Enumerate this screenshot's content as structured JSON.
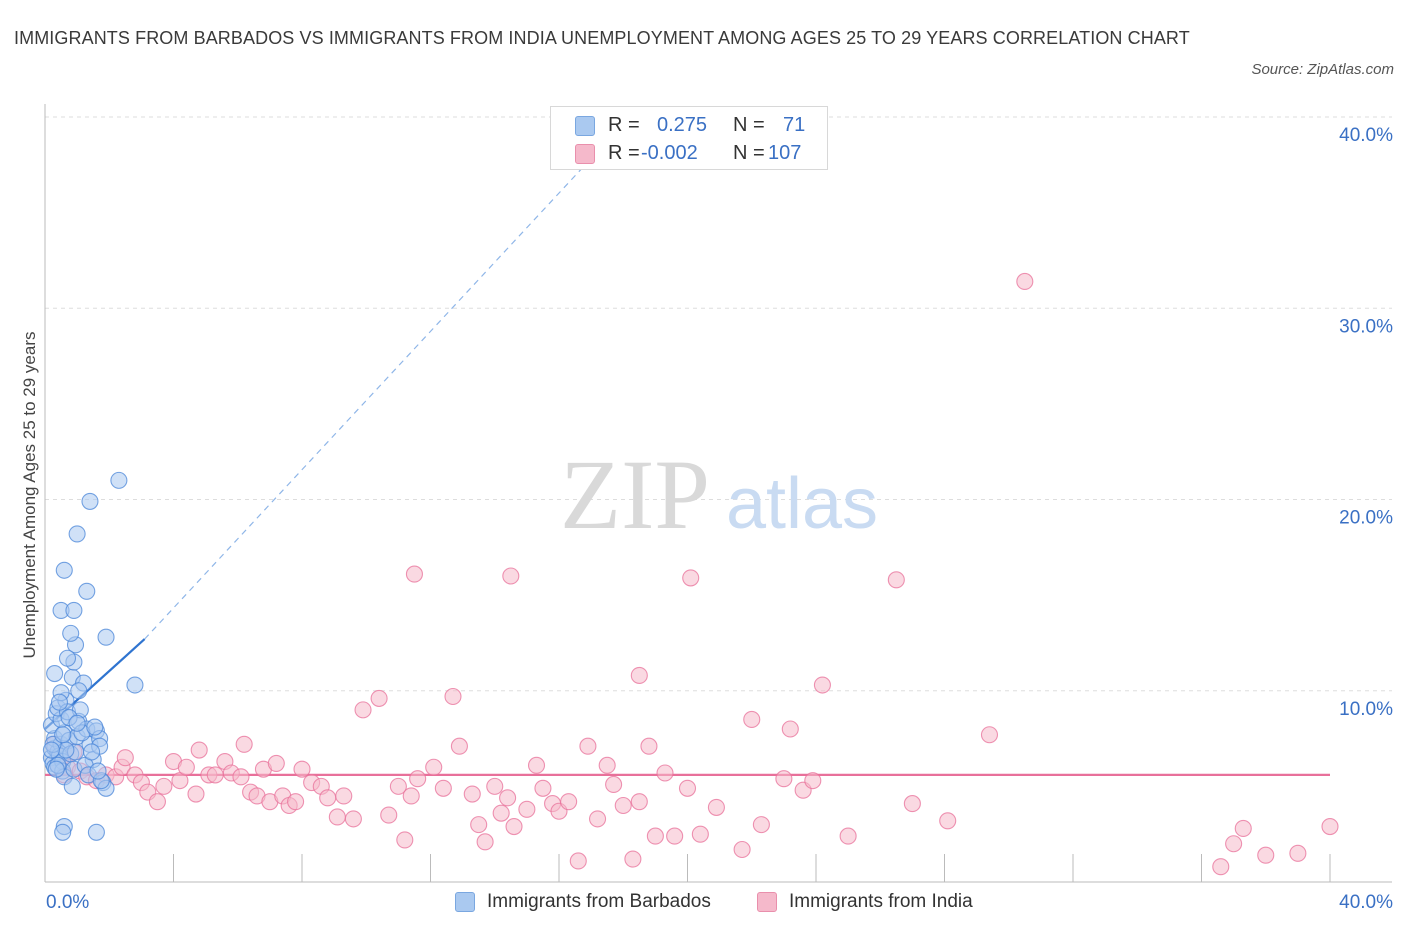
{
  "title": "IMMIGRANTS FROM BARBADOS VS IMMIGRANTS FROM INDIA UNEMPLOYMENT AMONG AGES 25 TO 29 YEARS CORRELATION CHART",
  "source": "Source: ZipAtlas.com",
  "watermark": {
    "zip": "ZIP",
    "atlas": "atlas"
  },
  "legend": {
    "rows": [
      {
        "r_label": "R =",
        "r_value": "0.275",
        "n_label": "N =",
        "n_value": "71",
        "color": "#aac9f0"
      },
      {
        "r_label": "R =",
        "r_value": "-0.002",
        "n_label": "N =",
        "n_value": "107",
        "color": "#f5b9cb"
      }
    ]
  },
  "bottom_legend": [
    {
      "label": "Immigrants from Barbados",
      "color": "#aac9f0"
    },
    {
      "label": "Immigrants from India",
      "color": "#f5b9cb"
    }
  ],
  "chart_data": {
    "type": "scatter",
    "title": "IMMIGRANTS FROM BARBADOS VS IMMIGRANTS FROM INDIA UNEMPLOYMENT AMONG AGES 25 TO 29 YEARS CORRELATION CHART",
    "xlabel": "",
    "ylabel": "Unemployment Among Ages 25 to 29 years",
    "xlim": [
      0,
      40
    ],
    "ylim": [
      0,
      40
    ],
    "x_tick_labels": [
      "0.0%",
      "40.0%"
    ],
    "y_ticks": [
      10,
      20,
      30,
      40
    ],
    "y_tick_labels": [
      "10.0%",
      "20.0%",
      "30.0%",
      "40.0%"
    ],
    "grid": true,
    "series": [
      {
        "name": "Immigrants from Barbados",
        "color": "#4a86d8",
        "fill": "#aac9f0",
        "trend": {
          "x": [
            0,
            3.1
          ],
          "y": [
            8.0,
            12.7
          ],
          "extended_x": [
            3.1,
            18.2
          ],
          "extended_y": [
            12.7,
            40.0
          ]
        },
        "points": [
          [
            0.2,
            6.5
          ],
          [
            0.3,
            7.0
          ],
          [
            0.25,
            6.2
          ],
          [
            0.4,
            6.8
          ],
          [
            0.3,
            7.5
          ],
          [
            0.2,
            8.2
          ],
          [
            0.35,
            8.8
          ],
          [
            0.5,
            7.2
          ],
          [
            0.3,
            6.0
          ],
          [
            0.45,
            6.6
          ],
          [
            0.55,
            6.3
          ],
          [
            0.6,
            7.8
          ],
          [
            0.5,
            8.5
          ],
          [
            0.4,
            9.1
          ],
          [
            0.65,
            9.5
          ],
          [
            0.5,
            9.9
          ],
          [
            0.7,
            8.9
          ],
          [
            0.75,
            7.4
          ],
          [
            0.8,
            6.7
          ],
          [
            0.55,
            5.8
          ],
          [
            0.6,
            5.5
          ],
          [
            0.9,
            5.9
          ],
          [
            0.95,
            6.8
          ],
          [
            1.0,
            7.6
          ],
          [
            1.05,
            8.4
          ],
          [
            1.1,
            9.0
          ],
          [
            0.85,
            10.7
          ],
          [
            0.9,
            11.5
          ],
          [
            0.95,
            12.4
          ],
          [
            0.8,
            13.0
          ],
          [
            1.2,
            10.4
          ],
          [
            1.3,
            8.0
          ],
          [
            1.4,
            7.2
          ],
          [
            1.5,
            6.4
          ],
          [
            1.6,
            7.9
          ],
          [
            1.7,
            7.5
          ],
          [
            1.25,
            6.1
          ],
          [
            1.35,
            5.6
          ],
          [
            1.8,
            5.2
          ],
          [
            1.9,
            4.9
          ],
          [
            1.7,
            7.1
          ],
          [
            0.3,
            10.9
          ],
          [
            0.7,
            11.7
          ],
          [
            0.5,
            14.2
          ],
          [
            0.9,
            14.2
          ],
          [
            1.3,
            15.2
          ],
          [
            0.6,
            16.3
          ],
          [
            1.0,
            18.2
          ],
          [
            1.4,
            19.9
          ],
          [
            2.3,
            21.0
          ],
          [
            1.9,
            12.8
          ],
          [
            2.8,
            10.3
          ],
          [
            0.6,
            2.9
          ],
          [
            0.55,
            2.6
          ],
          [
            1.6,
            2.6
          ],
          [
            0.85,
            5.0
          ],
          [
            1.75,
            5.3
          ],
          [
            1.15,
            7.8
          ],
          [
            1.45,
            6.8
          ],
          [
            0.4,
            6.1
          ],
          [
            0.35,
            5.9
          ],
          [
            0.65,
            6.9
          ],
          [
            0.75,
            8.6
          ],
          [
            1.05,
            10.0
          ],
          [
            0.45,
            9.4
          ],
          [
            0.25,
            7.2
          ],
          [
            0.2,
            6.9
          ],
          [
            0.55,
            7.7
          ],
          [
            1.0,
            8.3
          ],
          [
            1.55,
            8.1
          ],
          [
            1.65,
            5.8
          ]
        ]
      },
      {
        "name": "Immigrants from India",
        "color": "#e8709a",
        "fill": "#f5b9cb",
        "trend": {
          "x": [
            0,
            40
          ],
          "y": [
            5.6,
            5.6
          ]
        },
        "points": [
          [
            0.3,
            7.2
          ],
          [
            0.5,
            6.5
          ],
          [
            0.7,
            6.0
          ],
          [
            0.9,
            6.8
          ],
          [
            1.1,
            5.8
          ],
          [
            0.6,
            5.6
          ],
          [
            0.4,
            6.1
          ],
          [
            1.3,
            5.5
          ],
          [
            1.6,
            5.3
          ],
          [
            1.9,
            5.6
          ],
          [
            2.2,
            5.5
          ],
          [
            2.4,
            6.0
          ],
          [
            2.5,
            6.5
          ],
          [
            2.8,
            5.6
          ],
          [
            3.0,
            5.2
          ],
          [
            3.2,
            4.7
          ],
          [
            3.5,
            4.2
          ],
          [
            3.7,
            5.0
          ],
          [
            4.0,
            6.3
          ],
          [
            4.2,
            5.3
          ],
          [
            4.4,
            6.0
          ],
          [
            4.7,
            4.6
          ],
          [
            4.8,
            6.9
          ],
          [
            5.1,
            5.6
          ],
          [
            5.3,
            5.6
          ],
          [
            5.6,
            6.3
          ],
          [
            5.8,
            5.7
          ],
          [
            6.1,
            5.5
          ],
          [
            6.2,
            7.2
          ],
          [
            6.4,
            4.7
          ],
          [
            6.6,
            4.5
          ],
          [
            6.8,
            5.9
          ],
          [
            7.0,
            4.2
          ],
          [
            7.2,
            6.2
          ],
          [
            7.4,
            4.5
          ],
          [
            7.6,
            4.0
          ],
          [
            7.8,
            4.2
          ],
          [
            8.0,
            5.9
          ],
          [
            8.3,
            5.2
          ],
          [
            8.6,
            5.0
          ],
          [
            8.8,
            4.4
          ],
          [
            9.1,
            3.4
          ],
          [
            9.3,
            4.5
          ],
          [
            9.6,
            3.3
          ],
          [
            9.9,
            9.0
          ],
          [
            10.4,
            9.6
          ],
          [
            10.7,
            3.5
          ],
          [
            11.0,
            5.0
          ],
          [
            11.2,
            2.2
          ],
          [
            11.4,
            4.5
          ],
          [
            11.6,
            5.4
          ],
          [
            12.1,
            6.0
          ],
          [
            12.4,
            4.9
          ],
          [
            12.7,
            9.7
          ],
          [
            12.9,
            7.1
          ],
          [
            13.3,
            4.6
          ],
          [
            13.5,
            3.0
          ],
          [
            13.7,
            2.1
          ],
          [
            14.0,
            5.0
          ],
          [
            14.2,
            3.6
          ],
          [
            14.4,
            4.4
          ],
          [
            14.6,
            2.9
          ],
          [
            15.0,
            3.8
          ],
          [
            15.3,
            6.1
          ],
          [
            15.5,
            4.9
          ],
          [
            15.8,
            4.1
          ],
          [
            16.0,
            3.7
          ],
          [
            16.3,
            4.2
          ],
          [
            16.6,
            1.1
          ],
          [
            16.9,
            7.1
          ],
          [
            17.2,
            3.3
          ],
          [
            17.5,
            6.1
          ],
          [
            17.7,
            5.1
          ],
          [
            18.0,
            4.0
          ],
          [
            18.3,
            1.2
          ],
          [
            18.5,
            4.2
          ],
          [
            18.8,
            7.1
          ],
          [
            19.0,
            2.4
          ],
          [
            19.3,
            5.7
          ],
          [
            19.6,
            2.4
          ],
          [
            20.0,
            4.9
          ],
          [
            20.4,
            2.5
          ],
          [
            20.9,
            3.9
          ],
          [
            21.7,
            1.7
          ],
          [
            22.0,
            8.5
          ],
          [
            22.3,
            3.0
          ],
          [
            23.2,
            8.0
          ],
          [
            23.6,
            4.8
          ],
          [
            23.9,
            5.3
          ],
          [
            24.2,
            10.3
          ],
          [
            25.0,
            2.4
          ],
          [
            26.5,
            15.8
          ],
          [
            27.0,
            4.1
          ],
          [
            28.1,
            3.2
          ],
          [
            29.4,
            7.7
          ],
          [
            14.5,
            16.0
          ],
          [
            20.1,
            15.9
          ],
          [
            18.5,
            10.8
          ],
          [
            30.5,
            31.4
          ],
          [
            36.6,
            0.8
          ],
          [
            37.0,
            2.0
          ],
          [
            37.3,
            2.8
          ],
          [
            38.0,
            1.4
          ],
          [
            39.0,
            1.5
          ],
          [
            40.0,
            2.9
          ],
          [
            23.0,
            5.4
          ],
          [
            11.5,
            16.1
          ]
        ]
      }
    ]
  }
}
